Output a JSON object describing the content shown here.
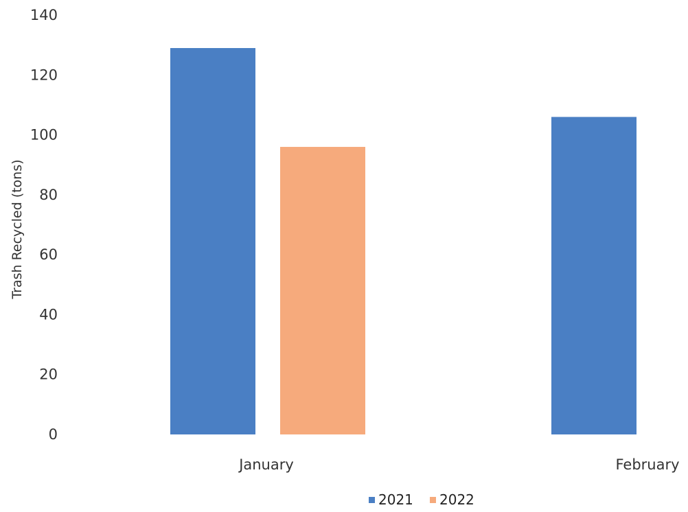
{
  "chart_data": {
    "type": "bar",
    "title": "",
    "xlabel": "",
    "ylabel": "Trash Recycled (tons)",
    "categories": [
      "January",
      "February"
    ],
    "series": [
      {
        "name": "2021",
        "color": "#4a7fc4",
        "values": [
          129,
          106
        ]
      },
      {
        "name": "2022",
        "color": "#f6aa7c",
        "values": [
          96,
          null
        ]
      }
    ],
    "ylim": [
      0,
      140
    ],
    "yticks": [
      0,
      20,
      40,
      60,
      80,
      100,
      120,
      140
    ],
    "grid": false,
    "legend_position": "bottom"
  }
}
